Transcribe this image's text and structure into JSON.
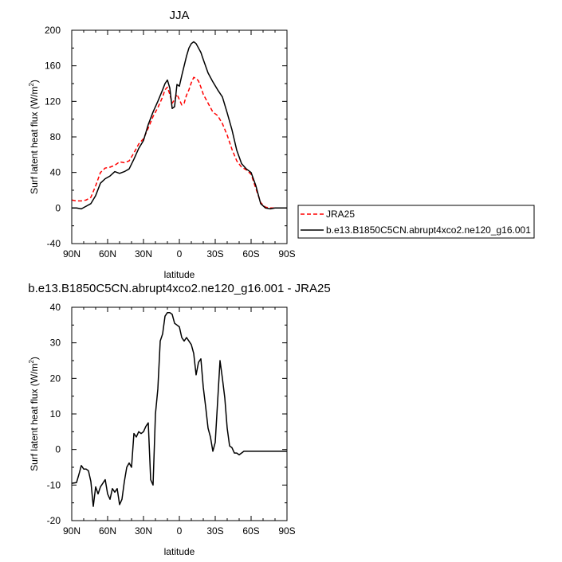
{
  "chart_data": [
    {
      "type": "line",
      "title": "JJA",
      "xlabel": "latitude",
      "ylabel": "Surf latent heat flux (W/m",
      "ylabel_sup": "2",
      "ylabel_close": ")",
      "xlim": [
        90,
        -90
      ],
      "ylim": [
        -40,
        200
      ],
      "xticks": [
        90,
        60,
        30,
        0,
        -30,
        -60,
        -90
      ],
      "xtick_labels": [
        "90N",
        "60N",
        "30N",
        "0",
        "30S",
        "60S",
        "90S"
      ],
      "yticks": [
        -40,
        0,
        40,
        80,
        120,
        160,
        200
      ],
      "ytick_labels": [
        "-40",
        "0",
        "40",
        "80",
        "120",
        "160",
        "200"
      ],
      "legend_position": "right, outside plot",
      "series": [
        {
          "name": "JRA25",
          "color": "#ff0000",
          "dash": "dashed",
          "x": [
            90,
            86,
            82,
            78,
            74,
            70,
            66,
            62,
            58,
            54,
            50,
            46,
            42,
            38,
            34,
            30,
            26,
            22,
            18,
            14,
            12,
            10,
            8,
            6,
            4,
            2,
            0,
            -2,
            -4,
            -6,
            -8,
            -10,
            -12,
            -14,
            -16,
            -18,
            -20,
            -24,
            -28,
            -32,
            -36,
            -40,
            -44,
            -48,
            -52,
            -56,
            -60,
            -64,
            -68,
            -72,
            -76,
            -80,
            -84,
            -88,
            -90
          ],
          "values": [
            9,
            8,
            8,
            9,
            12,
            25,
            40,
            45,
            46,
            48,
            52,
            51,
            53,
            62,
            72,
            78,
            90,
            103,
            113,
            125,
            133,
            136,
            128,
            118,
            122,
            128,
            122,
            116,
            118,
            127,
            133,
            141,
            147,
            146,
            143,
            136,
            128,
            118,
            108,
            104,
            95,
            82,
            66,
            53,
            46,
            43,
            38,
            22,
            6,
            1,
            0,
            0,
            0,
            0,
            0
          ]
        },
        {
          "name": "b.e13.B1850C5CN.abrupt4xco2.ne120_g16.001",
          "color": "#000000",
          "dash": "solid",
          "x": [
            90,
            86,
            82,
            78,
            74,
            70,
            66,
            62,
            58,
            54,
            50,
            46,
            42,
            38,
            34,
            30,
            26,
            22,
            18,
            14,
            12,
            10,
            8,
            6,
            4,
            2,
            0,
            -2,
            -4,
            -6,
            -8,
            -10,
            -12,
            -14,
            -16,
            -18,
            -20,
            -24,
            -28,
            -32,
            -36,
            -40,
            -44,
            -48,
            -52,
            -56,
            -60,
            -64,
            -68,
            -72,
            -76,
            -80,
            -84,
            -88,
            -90
          ],
          "values": [
            0,
            0,
            -1,
            2,
            5,
            14,
            28,
            33,
            36,
            41,
            39,
            41,
            44,
            55,
            67,
            76,
            94,
            108,
            120,
            133,
            140,
            144,
            135,
            112,
            114,
            139,
            137,
            149,
            160,
            171,
            180,
            185,
            187,
            185,
            180,
            175,
            167,
            152,
            142,
            133,
            125,
            107,
            88,
            65,
            50,
            44,
            40,
            25,
            5,
            0,
            -1,
            0,
            0,
            0,
            0
          ]
        }
      ]
    },
    {
      "type": "line",
      "title": "b.e13.B1850C5CN.abrupt4xco2.ne120_g16.001 - JRA25",
      "xlabel": "latitude",
      "ylabel": "Surf latent heat flux (W/m",
      "ylabel_sup": "2",
      "ylabel_close": ")",
      "xlim": [
        90,
        -90
      ],
      "ylim": [
        -20,
        40
      ],
      "xticks": [
        90,
        60,
        30,
        0,
        -30,
        -60,
        -90
      ],
      "xtick_labels": [
        "90N",
        "60N",
        "30N",
        "0",
        "30S",
        "60S",
        "90S"
      ],
      "yticks": [
        -20,
        -10,
        0,
        10,
        20,
        30,
        40
      ],
      "ytick_labels": [
        "-20",
        "-10",
        "0",
        "10",
        "20",
        "30",
        "40"
      ],
      "series": [
        {
          "name": "",
          "color": "#000000",
          "dash": "solid",
          "x": [
            90,
            86,
            84,
            82,
            80,
            78,
            76,
            74,
            72,
            70,
            68,
            66,
            64,
            62,
            60,
            58,
            56,
            54,
            52,
            50,
            48,
            46,
            44,
            42,
            40,
            38,
            36,
            34,
            32,
            30,
            28,
            26,
            24,
            22,
            20,
            18,
            16,
            14,
            12,
            10,
            8,
            6,
            4,
            2,
            0,
            -2,
            -4,
            -6,
            -8,
            -10,
            -12,
            -14,
            -16,
            -18,
            -20,
            -22,
            -24,
            -26,
            -28,
            -30,
            -32,
            -34,
            -36,
            -38,
            -40,
            -42,
            -44,
            -46,
            -48,
            -50,
            -52,
            -54,
            -56,
            -58,
            -60,
            -62,
            -64,
            -66,
            -68,
            -70,
            -72,
            -74,
            -76,
            -78,
            -80,
            -82,
            -84,
            -86,
            -88,
            -90
          ],
          "values": [
            -9.5,
            -9.3,
            -7,
            -4.5,
            -5.5,
            -5.5,
            -6,
            -9,
            -16,
            -10.5,
            -12.5,
            -10.5,
            -9.5,
            -8.5,
            -12.5,
            -14,
            -11,
            -12,
            -11,
            -15.5,
            -14,
            -9,
            -5,
            -3.8,
            -5,
            4.5,
            3.5,
            5,
            4.5,
            5,
            6.5,
            7.5,
            -8.5,
            -10,
            10,
            17,
            30.5,
            32.5,
            37.5,
            38.5,
            38.5,
            38,
            35.5,
            35,
            34.5,
            31.5,
            30.5,
            31.5,
            30.5,
            29.5,
            27,
            21,
            24.5,
            25.5,
            17.5,
            12,
            6,
            3.5,
            -0.5,
            2,
            13.5,
            25,
            20,
            14.5,
            6,
            1,
            0.5,
            -1,
            -1,
            -1.5,
            -1,
            -0.5,
            -0.5,
            -0.5,
            -0.5,
            -0.5,
            -0.5,
            -0.5,
            -0.5,
            -0.5,
            -0.5,
            -0.5,
            -0.5,
            -0.5,
            -0.5,
            -0.5,
            -0.5,
            -0.5,
            -0.5,
            -0.5
          ]
        }
      ]
    }
  ]
}
